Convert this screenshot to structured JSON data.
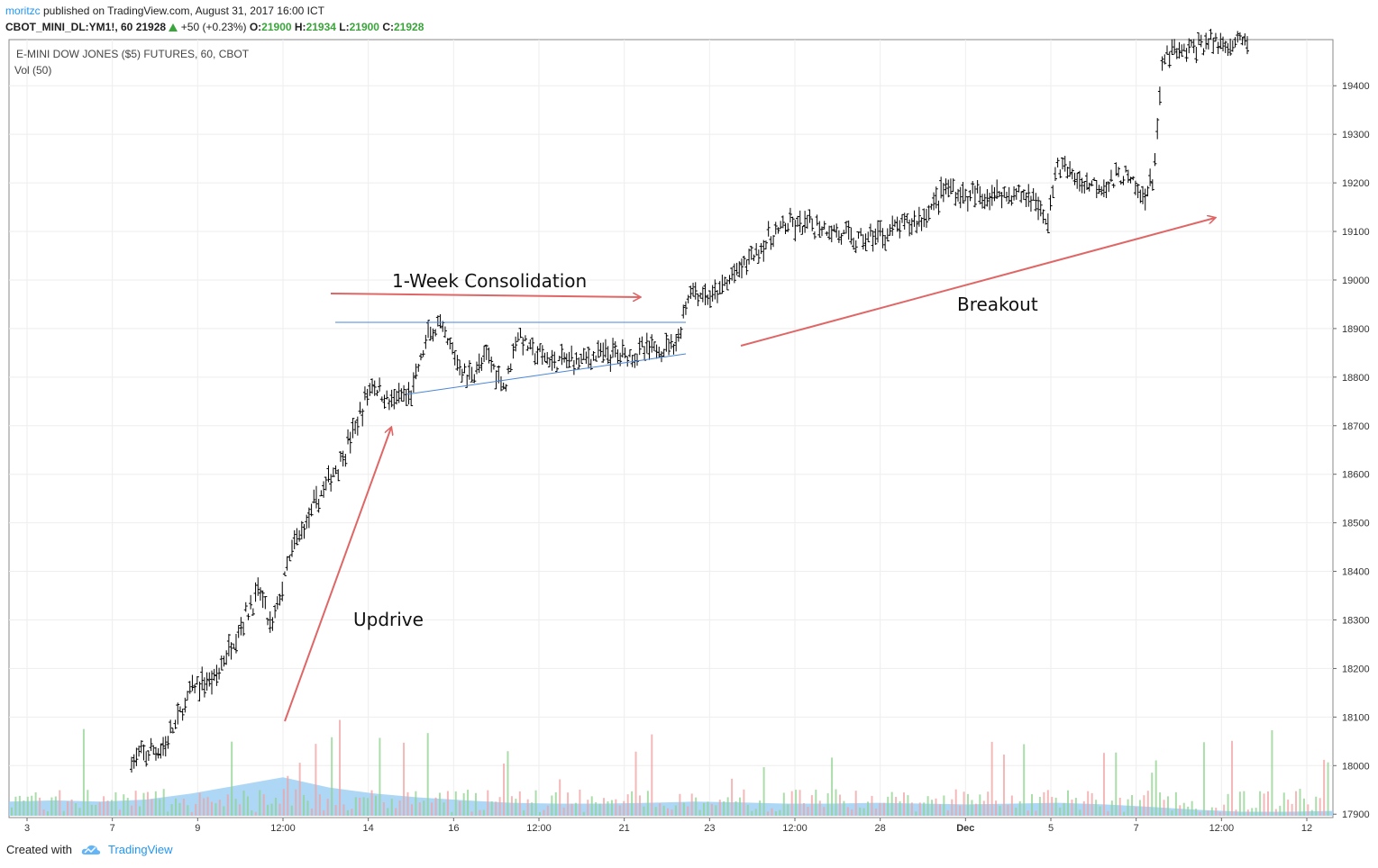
{
  "header": {
    "user": "moritzc",
    "published_text": " published on TradingView.com, August 31, 2017 16:00 ICT",
    "symbol": "CBOT_MINI_DL:YM1!, 60",
    "last": "21928",
    "change": "+50 (+0.23%)",
    "o_label": "O:",
    "o": "21900",
    "h_label": "H:",
    "h": "21934",
    "l_label": "L:",
    "l": "21900",
    "c_label": "C:",
    "c": "21928"
  },
  "chart_title": "E-MINI DOW JONES ($5) FUTURES, 60, CBOT",
  "volume_label": "Vol (50)",
  "footer": {
    "created_with": "Created with",
    "brand": "TradingView"
  },
  "colors": {
    "grid": "#eeeeee",
    "bars": "#000000",
    "annotation_arrow": "#e06666",
    "trendline": "#4a86d8",
    "volume_ma_fill": "#9fd0f3",
    "volume_up": "#8fd18f",
    "volume_down": "#f0a0a0",
    "accent_green": "#3aa53a"
  },
  "chart_data": {
    "type": "ohlc",
    "title": "E-MINI DOW JONES ($5) FUTURES, 60, CBOT",
    "y_ticks": [
      17900,
      18000,
      18100,
      18200,
      18300,
      18400,
      18500,
      18600,
      18700,
      18800,
      18900,
      19000,
      19100,
      19200,
      19300,
      19400
    ],
    "ylim": [
      17893,
      19495
    ],
    "x_ticks": [
      "3",
      "7",
      "9",
      "12:00",
      "14",
      "16",
      "12:00",
      "21",
      "23",
      "12:00",
      "28",
      "Dec",
      "5",
      "7",
      "12:00",
      "12"
    ],
    "price_path": [
      {
        "t": 0.0,
        "p": 18010
      },
      {
        "t": 0.03,
        "p": 18040
      },
      {
        "t": 0.055,
        "p": 18160
      },
      {
        "t": 0.075,
        "p": 18180
      },
      {
        "t": 0.1,
        "p": 18300
      },
      {
        "t": 0.115,
        "p": 18360
      },
      {
        "t": 0.125,
        "p": 18280
      },
      {
        "t": 0.145,
        "p": 18450
      },
      {
        "t": 0.17,
        "p": 18560
      },
      {
        "t": 0.19,
        "p": 18640
      },
      {
        "t": 0.205,
        "p": 18720
      },
      {
        "t": 0.215,
        "p": 18790
      },
      {
        "t": 0.23,
        "p": 18750
      },
      {
        "t": 0.25,
        "p": 18760
      },
      {
        "t": 0.265,
        "p": 18880
      },
      {
        "t": 0.275,
        "p": 18905
      },
      {
        "t": 0.285,
        "p": 18860
      },
      {
        "t": 0.3,
        "p": 18800
      },
      {
        "t": 0.32,
        "p": 18840
      },
      {
        "t": 0.335,
        "p": 18780
      },
      {
        "t": 0.345,
        "p": 18890
      },
      {
        "t": 0.36,
        "p": 18850
      },
      {
        "t": 0.38,
        "p": 18830
      },
      {
        "t": 0.42,
        "p": 18845
      },
      {
        "t": 0.45,
        "p": 18850
      },
      {
        "t": 0.475,
        "p": 18860
      },
      {
        "t": 0.49,
        "p": 18880
      },
      {
        "t": 0.5,
        "p": 18980
      },
      {
        "t": 0.52,
        "p": 18960
      },
      {
        "t": 0.54,
        "p": 19010
      },
      {
        "t": 0.56,
        "p": 19060
      },
      {
        "t": 0.585,
        "p": 19110
      },
      {
        "t": 0.62,
        "p": 19110
      },
      {
        "t": 0.65,
        "p": 19080
      },
      {
        "t": 0.68,
        "p": 19100
      },
      {
        "t": 0.71,
        "p": 19130
      },
      {
        "t": 0.73,
        "p": 19190
      },
      {
        "t": 0.75,
        "p": 19170
      },
      {
        "t": 0.78,
        "p": 19180
      },
      {
        "t": 0.81,
        "p": 19170
      },
      {
        "t": 0.82,
        "p": 19110
      },
      {
        "t": 0.83,
        "p": 19240
      },
      {
        "t": 0.85,
        "p": 19200
      },
      {
        "t": 0.88,
        "p": 19200
      },
      {
        "t": 0.89,
        "p": 19220
      },
      {
        "t": 0.905,
        "p": 19170
      },
      {
        "t": 0.915,
        "p": 19200
      },
      {
        "t": 0.925,
        "p": 19460
      },
      {
        "t": 0.945,
        "p": 19470
      },
      {
        "t": 0.965,
        "p": 19490
      }
    ],
    "volume_ma_path": [
      0.35,
      0.38,
      0.35,
      0.4,
      0.55,
      0.75,
      0.95,
      0.7,
      0.55,
      0.45,
      0.38,
      0.32,
      0.3,
      0.3,
      0.32,
      0.35,
      0.33,
      0.3,
      0.3,
      0.32,
      0.3,
      0.28,
      0.3,
      0.32,
      0.28,
      0.22,
      0.15,
      0.1,
      0.1,
      0.12
    ],
    "annotations": [
      {
        "text": "Updrive"
      },
      {
        "text": "1-Week Consolidation"
      },
      {
        "text": "Breakout"
      }
    ]
  }
}
